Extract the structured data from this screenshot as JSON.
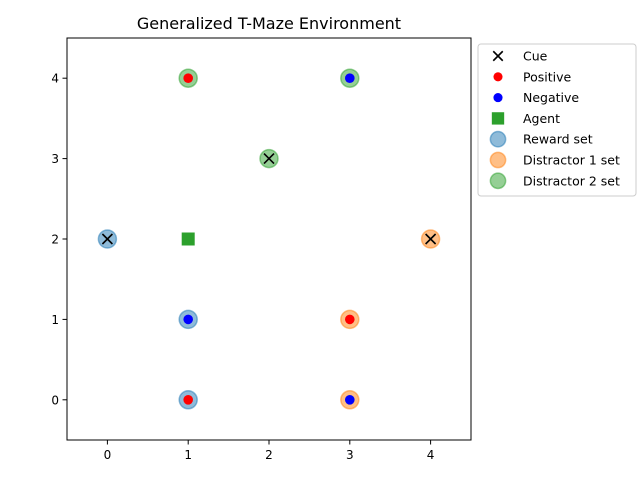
{
  "chart_data": {
    "type": "scatter",
    "title": "Generalized T-Maze Environment",
    "xlabel": "",
    "ylabel": "",
    "xlim": [
      -0.5,
      4.5
    ],
    "ylim": [
      -0.5,
      4.5
    ],
    "xticks": [
      0,
      1,
      2,
      3,
      4
    ],
    "yticks": [
      0,
      1,
      2,
      3,
      4
    ],
    "grid": false,
    "legend_position": "outside-top-right",
    "series": [
      {
        "name": "Reward set",
        "marker": "large-circle",
        "color": "#1f77b4",
        "alpha": 0.5,
        "points": [
          [
            0,
            2
          ],
          [
            1,
            1
          ],
          [
            1,
            0
          ]
        ]
      },
      {
        "name": "Distractor 1 set",
        "marker": "large-circle",
        "color": "#ff7f0e",
        "alpha": 0.5,
        "points": [
          [
            4,
            2
          ],
          [
            3,
            1
          ],
          [
            3,
            0
          ]
        ]
      },
      {
        "name": "Distractor 2 set",
        "marker": "large-circle",
        "color": "#2ca02c",
        "alpha": 0.5,
        "points": [
          [
            2,
            3
          ],
          [
            1,
            4
          ],
          [
            3,
            4
          ]
        ]
      },
      {
        "name": "Cue",
        "marker": "x",
        "color": "#000000",
        "points": [
          [
            0,
            2
          ],
          [
            4,
            2
          ],
          [
            2,
            3
          ]
        ]
      },
      {
        "name": "Positive",
        "marker": "dot",
        "color": "#ff0000",
        "points": [
          [
            1,
            4
          ],
          [
            3,
            1
          ],
          [
            1,
            0
          ]
        ]
      },
      {
        "name": "Negative",
        "marker": "dot",
        "color": "#0000ff",
        "points": [
          [
            3,
            4
          ],
          [
            1,
            1
          ],
          [
            3,
            0
          ]
        ]
      },
      {
        "name": "Agent",
        "marker": "square",
        "color": "#2ca02c",
        "points": [
          [
            1,
            2
          ]
        ]
      }
    ],
    "legend_order": [
      "Cue",
      "Positive",
      "Negative",
      "Agent",
      "Reward set",
      "Distractor 1 set",
      "Distractor 2 set"
    ]
  }
}
